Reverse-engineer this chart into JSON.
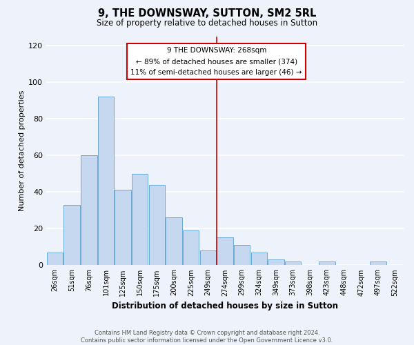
{
  "title": "9, THE DOWNSWAY, SUTTON, SM2 5RL",
  "subtitle": "Size of property relative to detached houses in Sutton",
  "xlabel": "Distribution of detached houses by size in Sutton",
  "ylabel": "Number of detached properties",
  "footer_line1": "Contains HM Land Registry data © Crown copyright and database right 2024.",
  "footer_line2": "Contains public sector information licensed under the Open Government Licence v3.0.",
  "bar_labels": [
    "26sqm",
    "51sqm",
    "76sqm",
    "101sqm",
    "125sqm",
    "150sqm",
    "175sqm",
    "200sqm",
    "225sqm",
    "249sqm",
    "274sqm",
    "299sqm",
    "324sqm",
    "349sqm",
    "373sqm",
    "398sqm",
    "423sqm",
    "448sqm",
    "472sqm",
    "497sqm",
    "522sqm"
  ],
  "bar_values": [
    7,
    33,
    60,
    92,
    41,
    50,
    44,
    26,
    19,
    8,
    15,
    11,
    7,
    3,
    2,
    0,
    2,
    0,
    0,
    2,
    0
  ],
  "bar_color": "#c5d8f0",
  "bar_edge_color": "#6aaad4",
  "vline_index": 9.5,
  "property_line_label": "9 THE DOWNSWAY: 268sqm",
  "annotation_line1": "← 89% of detached houses are smaller (374)",
  "annotation_line2": "11% of semi-detached houses are larger (46) →",
  "annotation_box_color": "#ffffff",
  "annotation_box_edge_color": "#cc0000",
  "vline_color": "#cc0000",
  "ylim": [
    0,
    125
  ],
  "yticks": [
    0,
    20,
    40,
    60,
    80,
    100,
    120
  ],
  "background_color": "#eef2fa",
  "grid_color": "#ffffff"
}
